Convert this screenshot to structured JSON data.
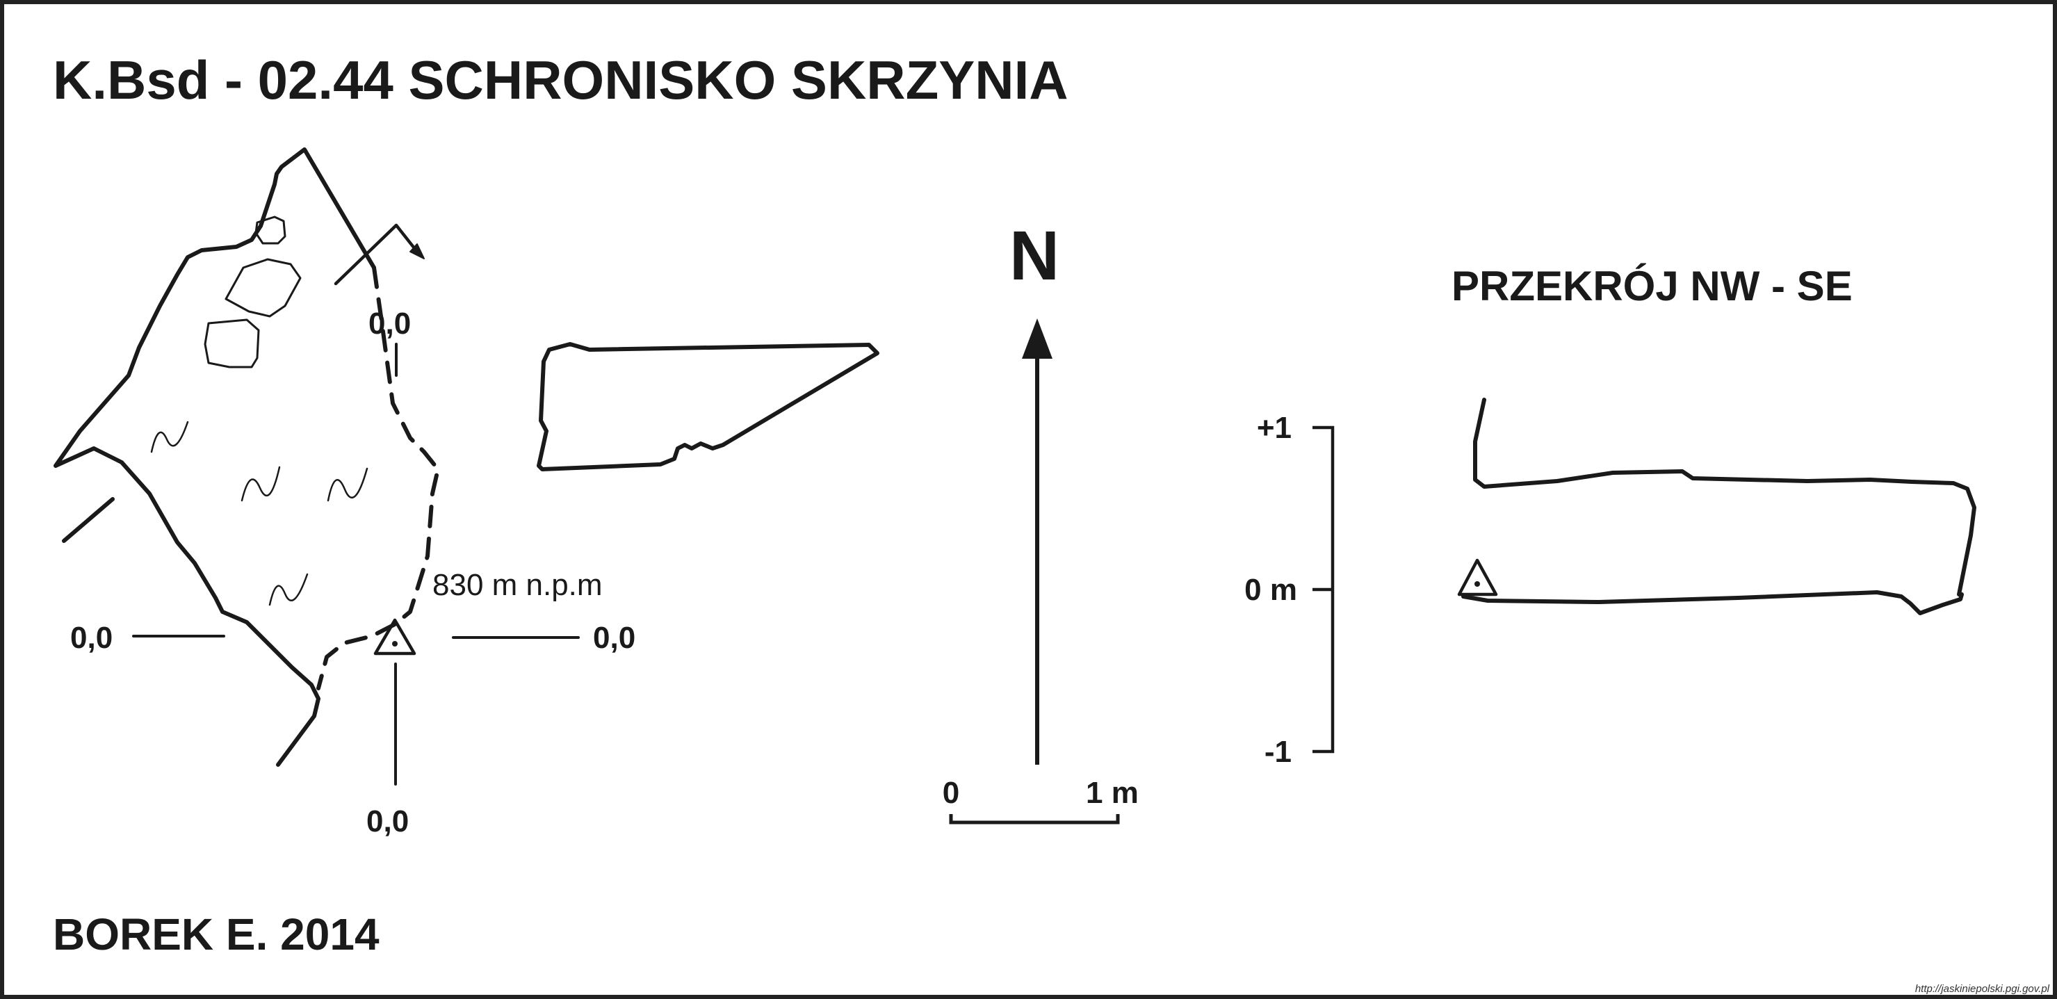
{
  "title": "K.Bsd - 02.44  SCHRONISKO SKRZYNIA",
  "author": "BOREK E. 2014",
  "source_url": "http://jaskiniepolski.pgi.gov.pl",
  "north_label": "N",
  "section_title": "PRZEKRÓJ NW - SE",
  "plan": {
    "label_top": "0,0",
    "label_left": "0,0",
    "label_right": "0,0",
    "label_bottom": "0,0",
    "elevation": "830 m n.p.m"
  },
  "scale_bar": {
    "start": "0",
    "end": "1 m"
  },
  "vertical_scale": {
    "top": "+1",
    "middle": "0 m",
    "bottom": "-1"
  }
}
